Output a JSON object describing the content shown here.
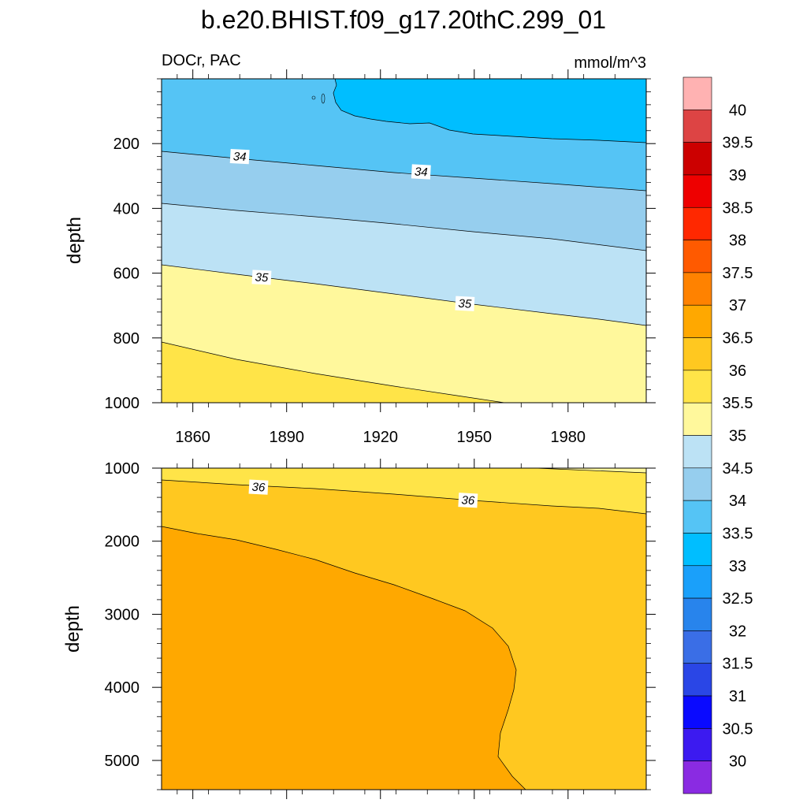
{
  "chart_data": {
    "type": "contour",
    "title": "b.e20.BHIST.f09_g17.20thC.299_01",
    "left_label": "DOCr, PAC",
    "right_label": "mmol/m^3",
    "colorbar": {
      "levels": [
        "30",
        "30.5",
        "31",
        "31.5",
        "32",
        "32.5",
        "33",
        "33.5",
        "34",
        "34.5",
        "35",
        "35.5",
        "36",
        "36.5",
        "37",
        "37.5",
        "38",
        "38.5",
        "39",
        "39.5",
        "40"
      ],
      "colors": [
        "#8A2BE2",
        "#3C1AF0",
        "#0A0AFF",
        "#2A46E6",
        "#3A6EE6",
        "#2884EC",
        "#1AA0FA",
        "#00BEFF",
        "#55C4F5",
        "#96CEEE",
        "#BCE2F5",
        "#FFF89C",
        "#FFE448",
        "#FFC820",
        "#FFA800",
        "#FF8200",
        "#FF5A00",
        "#FF2800",
        "#EE0000",
        "#CC0000",
        "#DD4444",
        "#FFB2B2"
      ]
    },
    "panels": [
      {
        "name": "upper",
        "ylabel": "depth",
        "xlim": [
          1850,
          2005
        ],
        "ylim": [
          0,
          1000
        ],
        "yticks": [
          "200",
          "400",
          "600",
          "800",
          "1000"
        ],
        "ytick_values": [
          200,
          400,
          600,
          800,
          1000
        ],
        "xticks": [
          "1860",
          "1890",
          "1920",
          "1950",
          "1980"
        ],
        "xtick_values": [
          1860,
          1890,
          1920,
          1950,
          1980
        ],
        "fills": [
          {
            "level": "33-33.5",
            "color": "#00BEFF"
          },
          {
            "level": "33.5-34",
            "color": "#55C4F5"
          },
          {
            "level": "34-34.5",
            "color": "#96CEEE"
          },
          {
            "level": "34.5-35",
            "color": "#BCE2F5"
          },
          {
            "level": "35-35.5",
            "color": "#FFF89C"
          },
          {
            "level": "35.5-36",
            "color": "#FFE448"
          }
        ],
        "contour_labels": [
          {
            "text": "34",
            "x": 1875,
            "y": 240
          },
          {
            "text": "34",
            "x": 1933,
            "y": 287
          },
          {
            "text": "35",
            "x": 1882,
            "y": 613
          },
          {
            "text": "35",
            "x": 1947,
            "y": 694
          }
        ]
      },
      {
        "name": "lower",
        "ylabel": "depth",
        "xlim": [
          1850,
          2005
        ],
        "ylim": [
          1000,
          5400
        ],
        "yticks": [
          "1000",
          "2000",
          "3000",
          "4000",
          "5000"
        ],
        "ytick_values": [
          1000,
          2000,
          3000,
          4000,
          5000
        ],
        "fills": [
          {
            "level": "35.5-36",
            "color": "#FFE448"
          },
          {
            "level": "36-36.5",
            "color": "#FFC820"
          },
          {
            "level": "36.5-37",
            "color": "#FFA800"
          }
        ],
        "contour_labels": [
          {
            "text": "36",
            "x": 1881,
            "y": 1260
          },
          {
            "text": "36",
            "x": 1948,
            "y": 1440
          }
        ]
      }
    ]
  }
}
